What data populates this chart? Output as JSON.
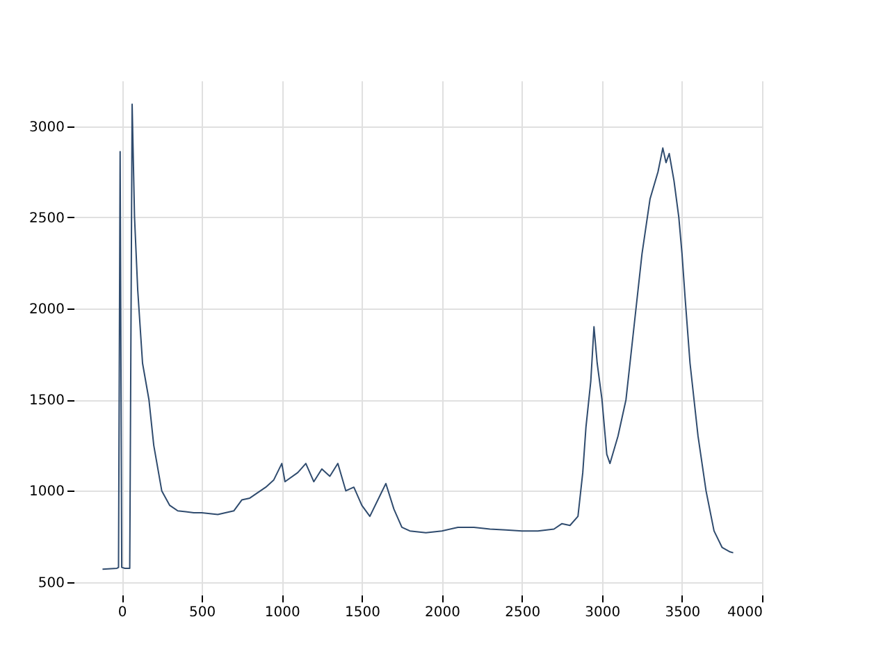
{
  "chart_data": {
    "type": "line",
    "grid": true,
    "xlim": [
      -300,
      4000
    ],
    "ylim": [
      430,
      3250
    ],
    "xticks": [
      0,
      500,
      1000,
      1500,
      2000,
      2500,
      3000,
      3500,
      4000
    ],
    "yticks": [
      500,
      1000,
      1500,
      2000,
      2500,
      3000
    ],
    "series": [
      {
        "color": "#2f4b6e",
        "x": [
          -120,
          -30,
          -20,
          -10,
          0,
          20,
          50,
          65,
          80,
          100,
          130,
          170,
          200,
          250,
          300,
          350,
          400,
          450,
          500,
          600,
          700,
          750,
          800,
          900,
          950,
          1000,
          1020,
          1100,
          1150,
          1200,
          1250,
          1300,
          1350,
          1400,
          1450,
          1500,
          1550,
          1600,
          1650,
          1700,
          1750,
          1800,
          1900,
          2000,
          2100,
          2200,
          2300,
          2400,
          2500,
          2600,
          2700,
          2750,
          2800,
          2850,
          2880,
          2900,
          2930,
          2950,
          2970,
          3000,
          3030,
          3050,
          3100,
          3150,
          3200,
          3250,
          3300,
          3350,
          3380,
          3400,
          3420,
          3450,
          3480,
          3500,
          3520,
          3550,
          3600,
          3650,
          3700,
          3750,
          3800,
          3820
        ],
        "values": [
          570,
          575,
          580,
          2860,
          580,
          575,
          575,
          3120,
          2500,
          2100,
          1700,
          1500,
          1250,
          1000,
          920,
          890,
          885,
          880,
          880,
          870,
          890,
          950,
          960,
          1020,
          1060,
          1150,
          1050,
          1100,
          1150,
          1050,
          1120,
          1080,
          1150,
          1000,
          1020,
          920,
          860,
          950,
          1040,
          900,
          800,
          780,
          770,
          780,
          800,
          800,
          790,
          785,
          780,
          780,
          790,
          820,
          810,
          860,
          1100,
          1350,
          1600,
          1900,
          1700,
          1500,
          1200,
          1150,
          1300,
          1500,
          1900,
          2300,
          2600,
          2750,
          2880,
          2800,
          2850,
          2700,
          2500,
          2300,
          2050,
          1700,
          1300,
          1000,
          780,
          690,
          665,
          660
        ]
      }
    ]
  }
}
